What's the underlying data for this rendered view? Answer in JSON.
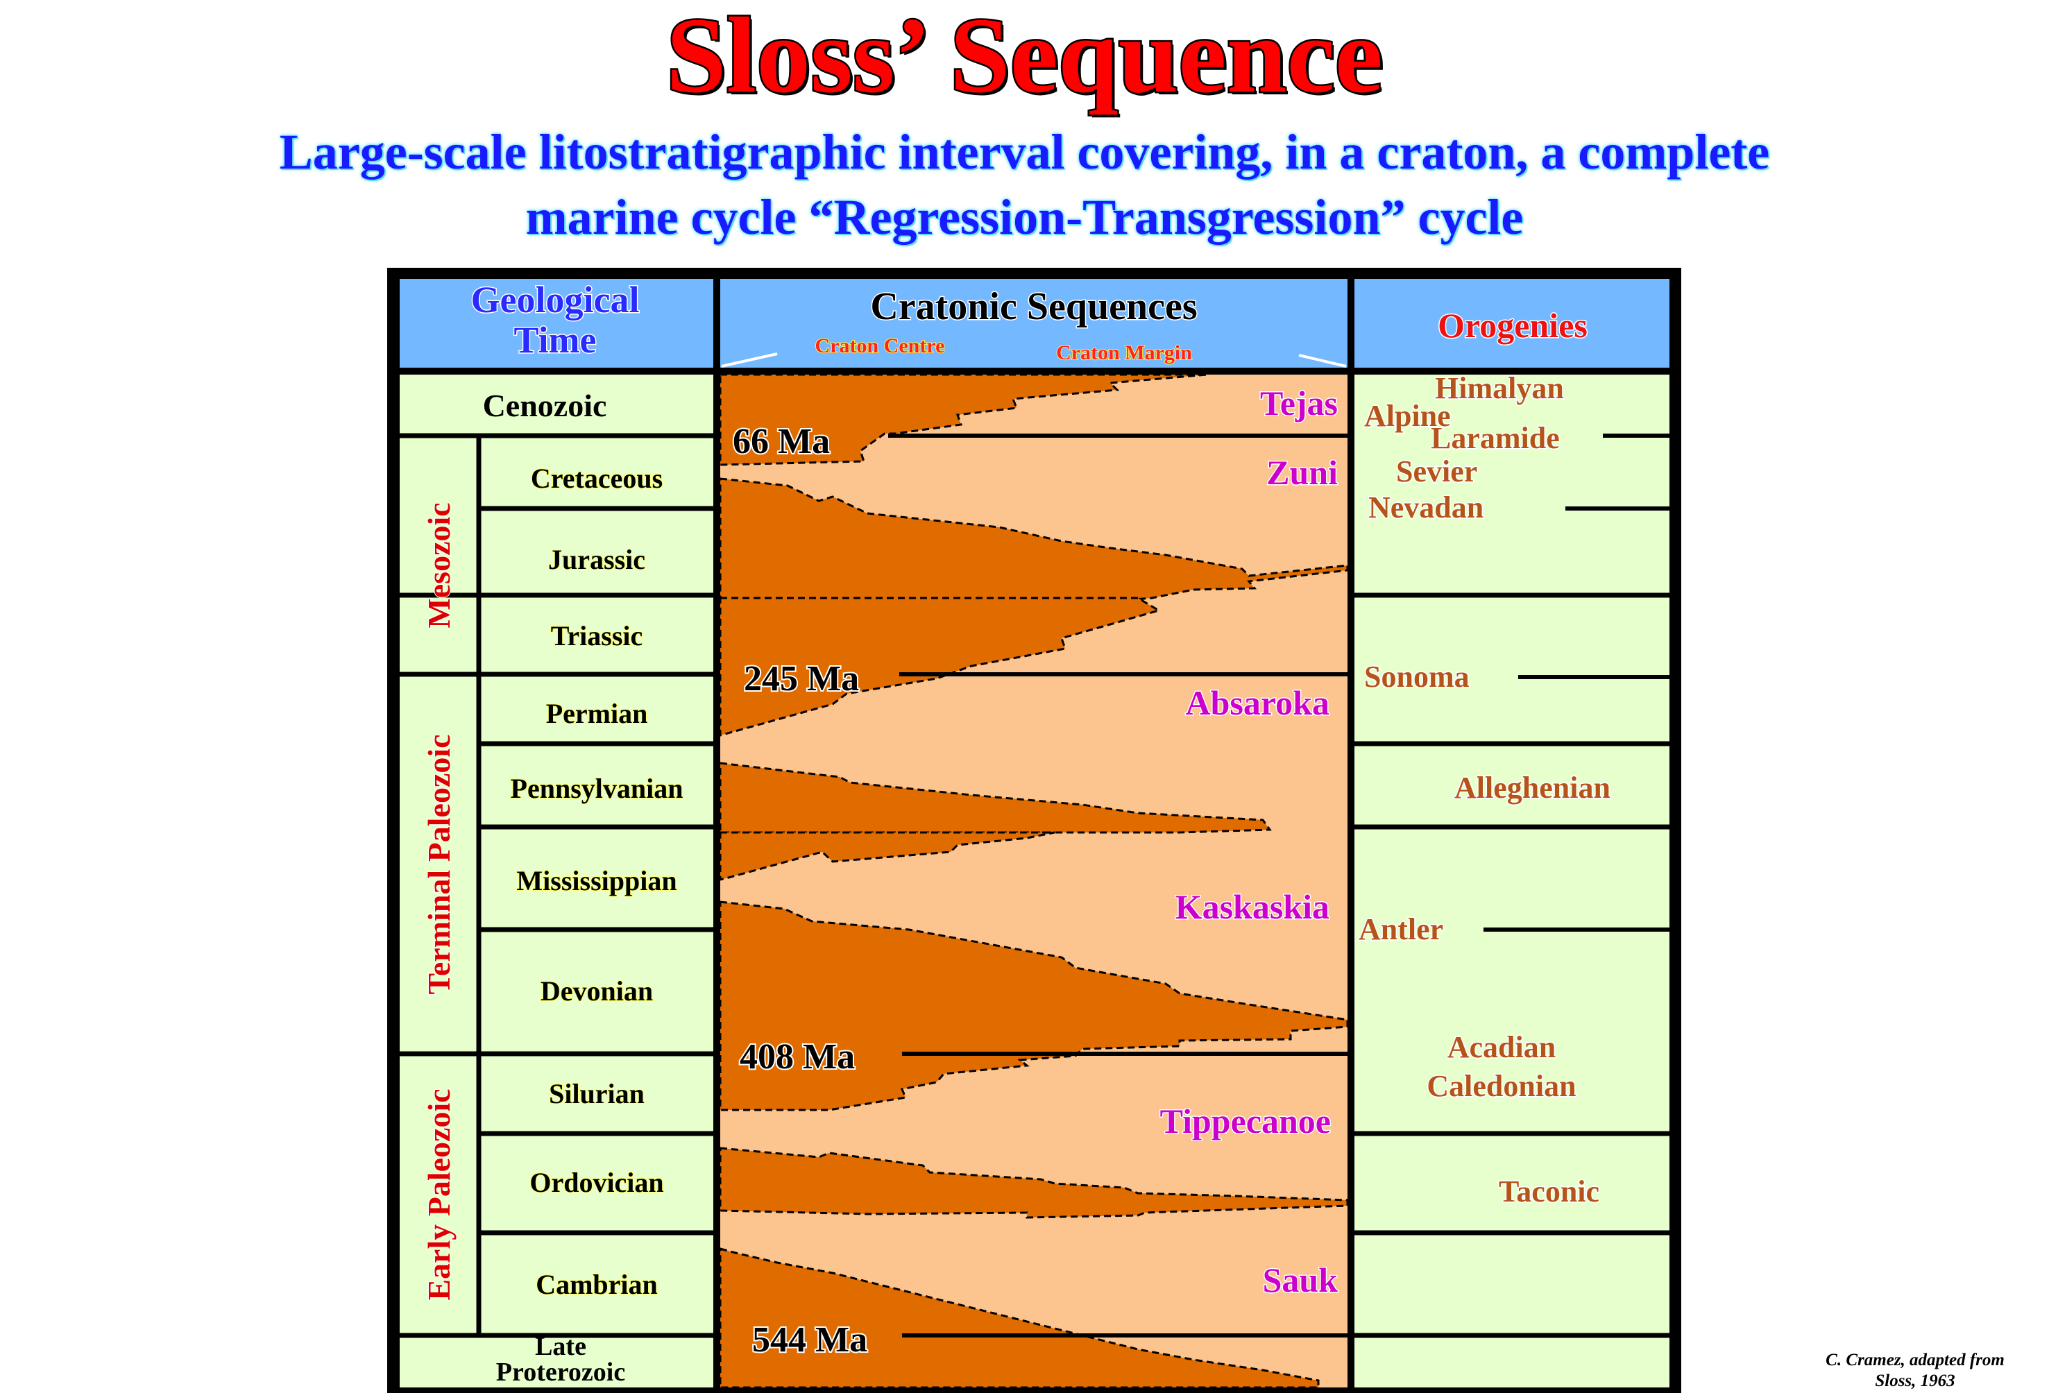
{
  "title": "Sloss’ Sequence",
  "subtitle_line1": "Large-scale litostratigraphic interval covering, in a  craton, a complete",
  "subtitle_line2": "marine cycle “Regression-Transgression” cycle",
  "headers": {
    "geological_time_line1": "Geological",
    "geological_time_line2": "Time",
    "cratonic_sequences": "Cratonic Sequences",
    "craton_centre": "Craton Centre",
    "craton_margin": "Craton Margin",
    "orogenies": "Orogenies"
  },
  "eras": {
    "cenozoic": "Cenozoic",
    "mesozoic": "Mesozoic",
    "terminal_paleozoic": "Terminal Paleozoic",
    "early_paleozoic": "Early Paleozoic",
    "late_proterozoic_line1": "Late",
    "late_proterozoic_line2": "Proterozoic"
  },
  "periods": {
    "cretaceous": "Cretaceous",
    "jurassic": "Jurassic",
    "triassic": "Triassic",
    "permian": "Permian",
    "pennsylvanian": "Pennsylvanian",
    "mississippian": "Mississippian",
    "devonian": "Devonian",
    "silurian": "Silurian",
    "ordovician": "Ordovician",
    "cambrian": "Cambrian"
  },
  "sequences": {
    "tejas": "Tejas",
    "zuni": "Zuni",
    "absaroka": "Absaroka",
    "kaskaskia": "Kaskaskia",
    "tippecanoe": "Tippecanoe",
    "sauk": "Sauk"
  },
  "ages": {
    "ma66": "66 Ma",
    "ma245": "245 Ma",
    "ma408": "408 Ma",
    "ma544": "544 Ma"
  },
  "orogenies": {
    "himalyan": "Himalyan",
    "alpine": "Alpine",
    "laramide": "Laramide",
    "sevier": "Sevier",
    "nevadan": "Nevadan",
    "sonoma": "Sonoma",
    "alleghenian": "Alleghenian",
    "antler": "Antler",
    "acadian": "Acadian",
    "caledonian": "Caledonian",
    "taconic": "Taconic"
  },
  "credit_line1": "C. Cramez, adapted from",
  "credit_line2": "Sloss, 1963",
  "colors": {
    "header_fill": "#74b8ff",
    "cell_fill": "#e6ffcc",
    "sequence_light": "#fcc48e",
    "sequence_dark": "#e06c00",
    "orogeny_text": "#b5531a",
    "sequence_label": "#cc00cc",
    "era_label": "#dd0000"
  }
}
